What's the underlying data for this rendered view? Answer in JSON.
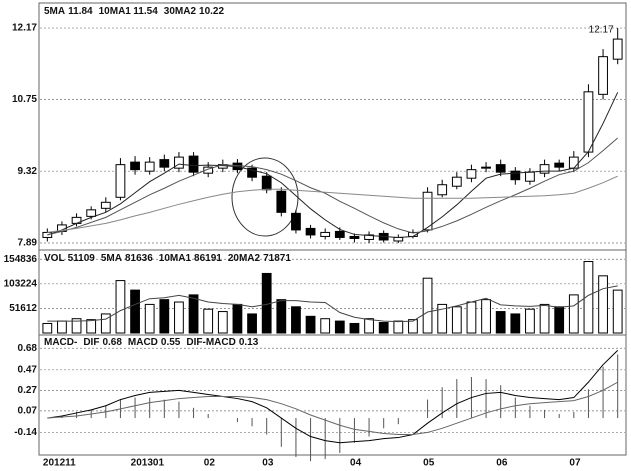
{
  "chart_data": [
    {
      "type": "candlestick",
      "legend": [
        {
          "name": "5MA",
          "value": 11.84
        },
        {
          "name": "10MA1",
          "value": 11.54
        },
        {
          "name": "30MA2",
          "value": 10.22
        }
      ],
      "max_label": "12.17",
      "open": [
        8.0,
        8.12,
        8.28,
        8.42,
        8.58,
        8.8,
        9.5,
        9.32,
        9.55,
        9.38,
        9.62,
        9.28,
        9.38,
        9.48,
        9.38,
        9.22,
        8.92,
        8.48,
        8.18,
        8.02,
        8.12,
        8.02,
        7.96,
        8.08,
        7.93,
        8.02,
        8.15,
        8.85,
        9.02,
        9.18,
        9.38,
        9.45,
        9.32,
        9.12,
        9.28,
        9.48,
        9.38,
        9.7,
        10.85,
        11.55
      ],
      "high": [
        8.18,
        8.32,
        8.48,
        8.62,
        8.8,
        9.58,
        9.62,
        9.6,
        9.65,
        9.7,
        9.7,
        9.5,
        9.55,
        9.56,
        9.45,
        9.3,
        9.0,
        8.55,
        8.25,
        8.18,
        8.2,
        8.08,
        8.12,
        8.14,
        8.06,
        8.16,
        9.0,
        9.15,
        9.3,
        9.45,
        9.5,
        9.55,
        9.4,
        9.38,
        9.55,
        9.55,
        9.72,
        11.05,
        11.75,
        12.17
      ],
      "low": [
        7.92,
        8.05,
        8.22,
        8.36,
        8.5,
        8.74,
        9.25,
        9.25,
        9.32,
        9.3,
        9.22,
        9.2,
        9.3,
        9.28,
        9.12,
        8.88,
        8.42,
        8.08,
        7.98,
        7.96,
        7.95,
        7.9,
        7.89,
        7.9,
        7.89,
        7.98,
        8.1,
        8.8,
        8.96,
        9.1,
        9.3,
        9.22,
        9.05,
        9.05,
        9.2,
        9.32,
        9.3,
        9.6,
        10.75,
        11.45
      ],
      "close": [
        8.1,
        8.25,
        8.4,
        8.55,
        8.7,
        9.45,
        9.35,
        9.5,
        9.4,
        9.6,
        9.3,
        9.4,
        9.45,
        9.35,
        9.2,
        8.95,
        8.5,
        8.15,
        8.05,
        8.1,
        8.0,
        7.98,
        8.05,
        7.95,
        8.0,
        8.1,
        8.9,
        9.05,
        9.2,
        9.35,
        9.4,
        9.3,
        9.15,
        9.3,
        9.45,
        9.4,
        9.6,
        10.9,
        11.6,
        11.95
      ],
      "ma": [
        {
          "color": "#222",
          "values": [
            8.05,
            8.15,
            8.28,
            8.4,
            8.5,
            8.67,
            8.89,
            9.11,
            9.28,
            9.46,
            9.43,
            9.44,
            9.43,
            9.41,
            9.34,
            9.27,
            9.09,
            8.83,
            8.57,
            8.35,
            8.16,
            8.06,
            8.04,
            8.02,
            8.0,
            8.02,
            8.2,
            8.41,
            8.65,
            8.92,
            9.18,
            9.26,
            9.28,
            9.3,
            9.32,
            9.32,
            9.38,
            9.71,
            10.27,
            10.89
          ]
        },
        {
          "color": "#555",
          "values": [
            8.05,
            8.12,
            8.2,
            8.3,
            8.4,
            8.55,
            8.7,
            8.85,
            8.98,
            9.12,
            9.24,
            9.36,
            9.45,
            9.43,
            9.41,
            9.35,
            9.26,
            9.13,
            8.99,
            8.88,
            8.72,
            8.58,
            8.43,
            8.29,
            8.17,
            8.09,
            8.13,
            8.22,
            8.33,
            8.46,
            8.6,
            8.73,
            8.85,
            8.98,
            9.12,
            9.25,
            9.32,
            9.49,
            9.73,
            9.98
          ]
        },
        {
          "color": "#888",
          "values": [
            8.1,
            8.14,
            8.18,
            8.23,
            8.28,
            8.35,
            8.43,
            8.5,
            8.58,
            8.66,
            8.73,
            8.8,
            8.86,
            8.91,
            8.94,
            8.96,
            8.96,
            8.94,
            8.92,
            8.9,
            8.88,
            8.86,
            8.84,
            8.82,
            8.8,
            8.78,
            8.78,
            8.78,
            8.78,
            8.78,
            8.79,
            8.8,
            8.81,
            8.82,
            8.83,
            8.85,
            8.88,
            8.98,
            9.09,
            9.22
          ]
        }
      ],
      "ylim": [
        7.79,
        12.37
      ],
      "yticks": [
        12.17,
        10.75,
        9.32,
        7.89
      ],
      "grid": true
    },
    {
      "type": "volume",
      "legend": [
        {
          "name": "VOL",
          "value": 51109
        },
        {
          "name": "5MA",
          "value": 81636
        },
        {
          "name": "10MA1",
          "value": 86191
        },
        {
          "name": "20MA2",
          "value": 71871
        }
      ],
      "values": [
        20000,
        25000,
        30000,
        28000,
        40000,
        110000,
        90000,
        60000,
        70000,
        65000,
        80000,
        50000,
        45000,
        60000,
        40000,
        125000,
        70000,
        55000,
        35000,
        30000,
        25000,
        20000,
        30000,
        22000,
        25000,
        28000,
        115000,
        60000,
        55000,
        65000,
        70000,
        45000,
        40000,
        50000,
        60000,
        55000,
        80000,
        150000,
        120000,
        90000
      ],
      "ma_values": [
        25000,
        25000,
        25000,
        26000,
        29000,
        47000,
        60000,
        72000,
        74000,
        79000,
        73000,
        65000,
        62000,
        60000,
        55000,
        60000,
        68000,
        68000,
        65000,
        64000,
        43000,
        33000,
        28000,
        25000,
        24000,
        25000,
        44000,
        50000,
        57000,
        65000,
        73000,
        59000,
        57000,
        56000,
        58000,
        54000,
        57000,
        79000,
        93000,
        99000
      ],
      "ylim": [
        0,
        170000
      ],
      "yticks": [
        154836,
        103224,
        51612
      ],
      "grid": true
    },
    {
      "type": "macd",
      "legend_prefix": "MACD-",
      "legend": [
        {
          "name": "DIF",
          "value": 0.68
        },
        {
          "name": "MACD",
          "value": 0.55
        },
        {
          "name": "DIF-MACD",
          "value": 0.13
        }
      ],
      "dif": [
        0.0,
        0.02,
        0.05,
        0.08,
        0.12,
        0.18,
        0.22,
        0.25,
        0.26,
        0.27,
        0.25,
        0.23,
        0.21,
        0.19,
        0.16,
        0.1,
        0.0,
        -0.1,
        -0.18,
        -0.22,
        -0.24,
        -0.23,
        -0.22,
        -0.2,
        -0.19,
        -0.16,
        -0.05,
        0.05,
        0.14,
        0.2,
        0.24,
        0.25,
        0.22,
        0.2,
        0.19,
        0.18,
        0.2,
        0.35,
        0.52,
        0.66
      ],
      "dea": [
        0.0,
        0.01,
        0.02,
        0.04,
        0.06,
        0.09,
        0.12,
        0.15,
        0.17,
        0.19,
        0.2,
        0.21,
        0.21,
        0.21,
        0.2,
        0.18,
        0.14,
        0.09,
        0.03,
        -0.02,
        -0.07,
        -0.11,
        -0.13,
        -0.15,
        -0.16,
        -0.16,
        -0.14,
        -0.1,
        -0.05,
        0.0,
        0.05,
        0.09,
        0.12,
        0.14,
        0.15,
        0.16,
        0.17,
        0.21,
        0.27,
        0.35
      ],
      "hist": [
        0.0,
        0.02,
        0.06,
        0.08,
        0.12,
        0.18,
        0.2,
        0.2,
        0.18,
        0.16,
        0.1,
        0.04,
        0.0,
        -0.04,
        -0.08,
        -0.16,
        -0.28,
        -0.38,
        -0.42,
        -0.4,
        -0.34,
        -0.24,
        -0.18,
        -0.1,
        -0.06,
        0.0,
        0.18,
        0.3,
        0.38,
        0.4,
        0.38,
        0.32,
        0.2,
        0.12,
        0.08,
        0.04,
        0.06,
        0.28,
        0.5,
        0.62
      ],
      "categories": [
        "201211",
        null,
        null,
        null,
        null,
        null,
        "201301",
        null,
        null,
        null,
        null,
        "02",
        null,
        null,
        null,
        "03",
        null,
        null,
        null,
        null,
        null,
        "04",
        null,
        null,
        null,
        null,
        "05",
        null,
        null,
        null,
        null,
        "06",
        null,
        null,
        null,
        null,
        "07",
        null,
        null,
        null
      ],
      "ylim": [
        -0.36,
        0.79
      ],
      "yticks": [
        0.68,
        0.47,
        0.27,
        0.07,
        -0.14
      ],
      "grid": true
    }
  ]
}
